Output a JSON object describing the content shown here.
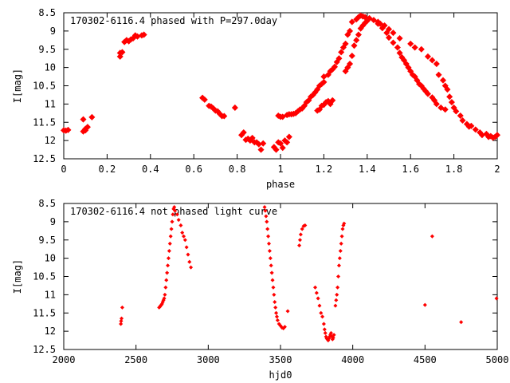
{
  "chart_data": [
    {
      "type": "scatter",
      "title": "170302-6116.4 phased with P=297.0day",
      "xlabel": "phase",
      "ylabel": "I[mag]",
      "xlim": [
        0,
        2
      ],
      "ylim": [
        12.5,
        8.5
      ],
      "y_inverted": true,
      "xticks": [
        "0",
        "0.2",
        "0.4",
        "0.6",
        "0.8",
        "1",
        "1.2",
        "1.4",
        "1.6",
        "1.8",
        "2"
      ],
      "yticks": [
        "8.5",
        "9",
        "9.5",
        "10",
        "10.5",
        "11",
        "11.5",
        "12",
        "12.5"
      ],
      "grid": false,
      "marker": "filled-diamond",
      "color": "#ff0000",
      "points": [
        [
          0.0,
          11.72
        ],
        [
          0.01,
          11.73
        ],
        [
          0.02,
          11.71
        ],
        [
          0.09,
          11.42
        ],
        [
          0.09,
          11.75
        ],
        [
          0.1,
          11.72
        ],
        [
          0.1,
          11.68
        ],
        [
          0.11,
          11.63
        ],
        [
          0.13,
          11.36
        ],
        [
          0.26,
          9.7
        ],
        [
          0.26,
          9.6
        ],
        [
          0.27,
          9.58
        ],
        [
          0.28,
          9.3
        ],
        [
          0.29,
          9.25
        ],
        [
          0.3,
          9.28
        ],
        [
          0.31,
          9.23
        ],
        [
          0.32,
          9.2
        ],
        [
          0.33,
          9.12
        ],
        [
          0.34,
          9.15
        ],
        [
          0.36,
          9.12
        ],
        [
          0.37,
          9.1
        ],
        [
          0.64,
          10.83
        ],
        [
          0.65,
          10.88
        ],
        [
          0.67,
          11.05
        ],
        [
          0.68,
          11.07
        ],
        [
          0.69,
          11.12
        ],
        [
          0.7,
          11.18
        ],
        [
          0.71,
          11.2
        ],
        [
          0.72,
          11.27
        ],
        [
          0.73,
          11.33
        ],
        [
          0.74,
          11.33
        ],
        [
          0.79,
          11.1
        ],
        [
          0.82,
          11.85
        ],
        [
          0.83,
          11.78
        ],
        [
          0.84,
          11.98
        ],
        [
          0.85,
          11.95
        ],
        [
          0.86,
          12.0
        ],
        [
          0.87,
          11.93
        ],
        [
          0.88,
          12.05
        ],
        [
          0.89,
          12.05
        ],
        [
          0.9,
          12.1
        ],
        [
          0.91,
          12.25
        ],
        [
          0.92,
          12.08
        ],
        [
          0.97,
          12.18
        ],
        [
          0.98,
          12.25
        ],
        [
          0.99,
          12.05
        ],
        [
          1.0,
          12.08
        ],
        [
          1.01,
          12.2
        ],
        [
          1.02,
          12.0
        ],
        [
          1.03,
          12.05
        ],
        [
          1.04,
          11.9
        ],
        [
          0.99,
          11.32
        ],
        [
          1.0,
          11.35
        ],
        [
          1.01,
          11.35
        ],
        [
          1.03,
          11.3
        ],
        [
          1.04,
          11.28
        ],
        [
          1.05,
          11.28
        ],
        [
          1.06,
          11.27
        ],
        [
          1.07,
          11.25
        ],
        [
          1.08,
          11.2
        ],
        [
          1.09,
          11.15
        ],
        [
          1.1,
          11.12
        ],
        [
          1.11,
          11.05
        ],
        [
          1.12,
          10.95
        ],
        [
          1.13,
          10.9
        ],
        [
          1.14,
          10.8
        ],
        [
          1.15,
          10.75
        ],
        [
          1.16,
          10.68
        ],
        [
          1.17,
          10.6
        ],
        [
          1.18,
          10.5
        ],
        [
          1.19,
          10.45
        ],
        [
          1.2,
          10.4
        ],
        [
          1.17,
          11.18
        ],
        [
          1.18,
          11.15
        ],
        [
          1.19,
          11.05
        ],
        [
          1.2,
          11.02
        ],
        [
          1.21,
          10.95
        ],
        [
          1.22,
          10.92
        ],
        [
          1.23,
          11.0
        ],
        [
          1.24,
          10.9
        ],
        [
          1.2,
          10.25
        ],
        [
          1.22,
          10.2
        ],
        [
          1.23,
          10.1
        ],
        [
          1.24,
          10.05
        ],
        [
          1.25,
          9.98
        ],
        [
          1.26,
          9.85
        ],
        [
          1.27,
          9.75
        ],
        [
          1.28,
          9.58
        ],
        [
          1.29,
          9.45
        ],
        [
          1.3,
          9.35
        ],
        [
          1.31,
          9.1
        ],
        [
          1.32,
          9.0
        ],
        [
          1.3,
          10.1
        ],
        [
          1.31,
          10.0
        ],
        [
          1.32,
          9.9
        ],
        [
          1.33,
          9.68
        ],
        [
          1.34,
          9.4
        ],
        [
          1.35,
          9.25
        ],
        [
          1.36,
          9.1
        ],
        [
          1.37,
          8.93
        ],
        [
          1.38,
          8.85
        ],
        [
          1.39,
          8.78
        ],
        [
          1.4,
          8.72
        ],
        [
          1.33,
          8.75
        ],
        [
          1.35,
          8.68
        ],
        [
          1.36,
          8.62
        ],
        [
          1.37,
          8.58
        ],
        [
          1.38,
          8.6
        ],
        [
          1.39,
          8.62
        ],
        [
          1.41,
          8.65
        ],
        [
          1.43,
          8.7
        ],
        [
          1.45,
          8.8
        ],
        [
          1.47,
          8.92
        ],
        [
          1.49,
          9.05
        ],
        [
          1.5,
          9.18
        ],
        [
          1.52,
          9.32
        ],
        [
          1.54,
          9.45
        ],
        [
          1.55,
          9.6
        ],
        [
          1.56,
          9.72
        ],
        [
          1.57,
          9.8
        ],
        [
          1.58,
          9.9
        ],
        [
          1.59,
          10.0
        ],
        [
          1.6,
          10.1
        ],
        [
          1.61,
          10.2
        ],
        [
          1.62,
          10.25
        ],
        [
          1.63,
          10.35
        ],
        [
          1.64,
          10.45
        ],
        [
          1.65,
          10.5
        ],
        [
          1.66,
          10.58
        ],
        [
          1.67,
          10.65
        ],
        [
          1.68,
          10.72
        ],
        [
          1.7,
          10.82
        ],
        [
          1.71,
          10.9
        ],
        [
          1.72,
          11.0
        ],
        [
          1.74,
          11.1
        ],
        [
          1.76,
          11.15
        ],
        [
          1.45,
          8.75
        ],
        [
          1.46,
          8.8
        ],
        [
          1.48,
          8.85
        ],
        [
          1.5,
          8.95
        ],
        [
          1.52,
          9.05
        ],
        [
          1.55,
          9.2
        ],
        [
          1.6,
          9.35
        ],
        [
          1.62,
          9.45
        ],
        [
          1.65,
          9.5
        ],
        [
          1.68,
          9.7
        ],
        [
          1.7,
          9.8
        ],
        [
          1.72,
          9.9
        ],
        [
          1.73,
          10.2
        ],
        [
          1.75,
          10.35
        ],
        [
          1.76,
          10.5
        ],
        [
          1.77,
          10.6
        ],
        [
          1.78,
          10.8
        ],
        [
          1.79,
          10.95
        ],
        [
          1.8,
          11.1
        ],
        [
          1.81,
          11.2
        ],
        [
          1.83,
          11.32
        ],
        [
          1.84,
          11.45
        ],
        [
          1.86,
          11.55
        ],
        [
          1.87,
          11.62
        ],
        [
          1.88,
          11.6
        ],
        [
          1.9,
          11.7
        ],
        [
          1.92,
          11.78
        ],
        [
          1.93,
          11.85
        ],
        [
          1.95,
          11.82
        ],
        [
          1.96,
          11.9
        ],
        [
          1.97,
          11.88
        ],
        [
          1.98,
          11.92
        ],
        [
          1.99,
          11.9
        ],
        [
          2.0,
          11.85
        ]
      ]
    },
    {
      "type": "scatter",
      "title": "170302-6116.4 not phased light curve",
      "xlabel": "hjd0",
      "ylabel": "I[mag]",
      "xlim": [
        2000,
        5000
      ],
      "ylim": [
        12.5,
        8.5
      ],
      "y_inverted": true,
      "xticks": [
        "2000",
        "2500",
        "3000",
        "3500",
        "4000",
        "4500",
        "5000"
      ],
      "yticks": [
        "8.5",
        "9",
        "9.5",
        "10",
        "10.5",
        "11",
        "11.5",
        "12",
        "12.5"
      ],
      "grid": false,
      "marker": "small-diamond",
      "color": "#ff0000",
      "points": [
        [
          2395,
          11.8
        ],
        [
          2397,
          11.72
        ],
        [
          2400,
          11.65
        ],
        [
          2405,
          11.35
        ],
        [
          2660,
          11.35
        ],
        [
          2665,
          11.33
        ],
        [
          2670,
          11.3
        ],
        [
          2675,
          11.28
        ],
        [
          2680,
          11.25
        ],
        [
          2685,
          11.2
        ],
        [
          2690,
          11.15
        ],
        [
          2695,
          11.1
        ],
        [
          2700,
          11.0
        ],
        [
          2705,
          10.8
        ],
        [
          2710,
          10.6
        ],
        [
          2715,
          10.4
        ],
        [
          2720,
          10.2
        ],
        [
          2725,
          10.0
        ],
        [
          2730,
          9.8
        ],
        [
          2735,
          9.6
        ],
        [
          2740,
          9.4
        ],
        [
          2745,
          9.2
        ],
        [
          2750,
          9.0
        ],
        [
          2755,
          8.8
        ],
        [
          2760,
          8.65
        ],
        [
          2765,
          8.6
        ],
        [
          2770,
          8.7
        ],
        [
          2785,
          8.8
        ],
        [
          2795,
          8.95
        ],
        [
          2810,
          9.1
        ],
        [
          2820,
          9.3
        ],
        [
          2830,
          9.4
        ],
        [
          2840,
          9.5
        ],
        [
          2850,
          9.7
        ],
        [
          2860,
          9.9
        ],
        [
          2870,
          10.1
        ],
        [
          2880,
          10.25
        ],
        [
          3390,
          8.6
        ],
        [
          3395,
          8.7
        ],
        [
          3400,
          8.85
        ],
        [
          3405,
          9.0
        ],
        [
          3410,
          9.2
        ],
        [
          3415,
          9.4
        ],
        [
          3420,
          9.6
        ],
        [
          3425,
          9.8
        ],
        [
          3430,
          10.0
        ],
        [
          3435,
          10.2
        ],
        [
          3440,
          10.4
        ],
        [
          3445,
          10.6
        ],
        [
          3450,
          10.8
        ],
        [
          3455,
          11.0
        ],
        [
          3460,
          11.2
        ],
        [
          3465,
          11.35
        ],
        [
          3470,
          11.5
        ],
        [
          3475,
          11.6
        ],
        [
          3480,
          11.7
        ],
        [
          3490,
          11.8
        ],
        [
          3500,
          11.85
        ],
        [
          3510,
          11.9
        ],
        [
          3520,
          11.92
        ],
        [
          3530,
          11.88
        ],
        [
          3550,
          11.45
        ],
        [
          3630,
          9.65
        ],
        [
          3635,
          9.5
        ],
        [
          3640,
          9.35
        ],
        [
          3650,
          9.2
        ],
        [
          3660,
          9.12
        ],
        [
          3670,
          9.1
        ],
        [
          3740,
          10.8
        ],
        [
          3750,
          10.95
        ],
        [
          3760,
          11.1
        ],
        [
          3770,
          11.3
        ],
        [
          3780,
          11.5
        ],
        [
          3790,
          11.6
        ],
        [
          3800,
          11.8
        ],
        [
          3805,
          11.95
        ],
        [
          3810,
          12.05
        ],
        [
          3815,
          12.15
        ],
        [
          3820,
          12.2
        ],
        [
          3825,
          12.22
        ],
        [
          3830,
          12.25
        ],
        [
          3835,
          12.2
        ],
        [
          3840,
          12.15
        ],
        [
          3845,
          12.1
        ],
        [
          3850,
          12.05
        ],
        [
          3855,
          12.15
        ],
        [
          3860,
          12.22
        ],
        [
          3865,
          12.18
        ],
        [
          3870,
          12.1
        ],
        [
          3880,
          11.3
        ],
        [
          3885,
          11.15
        ],
        [
          3890,
          11.0
        ],
        [
          3895,
          10.8
        ],
        [
          3900,
          10.5
        ],
        [
          3905,
          10.2
        ],
        [
          3910,
          10.0
        ],
        [
          3915,
          9.8
        ],
        [
          3920,
          9.6
        ],
        [
          3925,
          9.4
        ],
        [
          3930,
          9.2
        ],
        [
          3935,
          9.1
        ],
        [
          3940,
          9.05
        ],
        [
          4500,
          11.28
        ],
        [
          4550,
          9.4
        ],
        [
          4750,
          11.75
        ],
        [
          4995,
          11.1
        ]
      ]
    }
  ]
}
